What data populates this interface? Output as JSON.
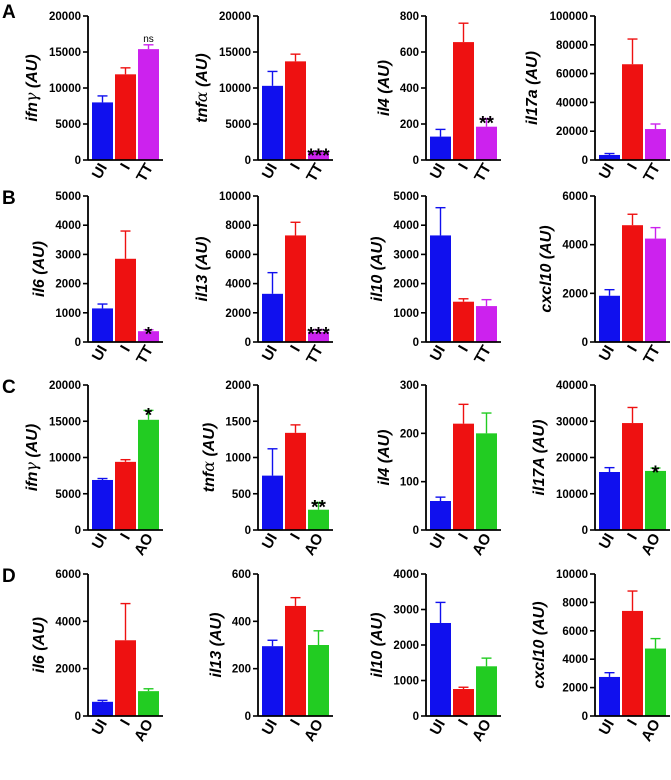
{
  "panel_labels": [
    "A",
    "B",
    "C",
    "D"
  ],
  "colors": {
    "UI": "#1010ee",
    "I": "#ee1111",
    "TT": "#cc22ee",
    "AO": "#22cc22"
  },
  "chart_data": [
    {
      "type": "bar",
      "panel": "A",
      "ylabel": "ifnγ (AU)",
      "ylabel_main": "ifn",
      "ylabel_greek": "γ",
      "ylabel_tail": " (AU)",
      "categories": [
        "UI",
        "I",
        "TT"
      ],
      "values": [
        8000,
        11900,
        15400
      ],
      "errors": [
        900,
        900,
        600
      ],
      "ylim": [
        0,
        20000
      ],
      "yticks": [
        "0",
        "5000",
        "10000",
        "15000",
        "20000"
      ],
      "significance": [
        "",
        "",
        "ns"
      ]
    },
    {
      "type": "bar",
      "panel": "A",
      "ylabel": "tnfα (AU)",
      "ylabel_main": "tnf",
      "ylabel_greek": "α",
      "ylabel_tail": " (AU)",
      "categories": [
        "UI",
        "I",
        "TT"
      ],
      "values": [
        10300,
        13700,
        1100
      ],
      "errors": [
        2000,
        1000,
        150
      ],
      "ylim": [
        0,
        20000
      ],
      "yticks": [
        "0",
        "5000",
        "10000",
        "15000",
        "20000"
      ],
      "significance": [
        "",
        "",
        "***"
      ]
    },
    {
      "type": "bar",
      "panel": "A",
      "ylabel": "il4 (AU)",
      "ylabel_main": "il4",
      "ylabel_greek": "",
      "ylabel_tail": " (AU)",
      "categories": [
        "UI",
        "I",
        "TT"
      ],
      "values": [
        130,
        655,
        185
      ],
      "errors": [
        40,
        105,
        45
      ],
      "ylim": [
        0,
        800
      ],
      "yticks": [
        "0",
        "200",
        "400",
        "600",
        "800"
      ],
      "significance": [
        "",
        "",
        "**"
      ]
    },
    {
      "type": "bar",
      "panel": "A",
      "ylabel": "il17a (AU)",
      "ylabel_main": "il17a",
      "ylabel_greek": "",
      "ylabel_tail": " (AU)",
      "categories": [
        "UI",
        "I",
        "TT"
      ],
      "values": [
        3500,
        66500,
        21500
      ],
      "errors": [
        1000,
        17500,
        3500
      ],
      "ylim": [
        0,
        100000
      ],
      "yticks": [
        "0",
        "20000",
        "40000",
        "60000",
        "80000",
        "100000"
      ],
      "significance": [
        "",
        "",
        ""
      ]
    },
    {
      "type": "bar",
      "panel": "B",
      "ylabel": "il6 (AU)",
      "ylabel_main": "il6",
      "ylabel_greek": "",
      "ylabel_tail": " (AU)",
      "categories": [
        "UI",
        "I",
        "TT"
      ],
      "values": [
        1150,
        2850,
        370
      ],
      "errors": [
        150,
        950,
        50
      ],
      "ylim": [
        0,
        5000
      ],
      "yticks": [
        "0",
        "1000",
        "2000",
        "3000",
        "4000",
        "5000"
      ],
      "significance": [
        "",
        "",
        "*"
      ]
    },
    {
      "type": "bar",
      "panel": "B",
      "ylabel": "il13 (AU)",
      "ylabel_main": "il13",
      "ylabel_greek": "",
      "ylabel_tail": " (AU)",
      "categories": [
        "UI",
        "I",
        "TT"
      ],
      "values": [
        3300,
        7300,
        700
      ],
      "errors": [
        1450,
        900,
        150
      ],
      "ylim": [
        0,
        10000
      ],
      "yticks": [
        "0",
        "2000",
        "4000",
        "6000",
        "8000",
        "10000"
      ],
      "significance": [
        "",
        "",
        "***"
      ]
    },
    {
      "type": "bar",
      "panel": "B",
      "ylabel": "il10 (AU)",
      "ylabel_main": "il10",
      "ylabel_greek": "",
      "ylabel_tail": " (AU)",
      "categories": [
        "UI",
        "I",
        "TT"
      ],
      "values": [
        3650,
        1380,
        1230
      ],
      "errors": [
        950,
        100,
        220
      ],
      "ylim": [
        0,
        5000
      ],
      "yticks": [
        "0",
        "1000",
        "2000",
        "3000",
        "4000",
        "5000"
      ],
      "significance": [
        "",
        "",
        ""
      ]
    },
    {
      "type": "bar",
      "panel": "B",
      "ylabel": "cxcl10 (AU)",
      "ylabel_main": "cxcl10",
      "ylabel_greek": "",
      "ylabel_tail": " (AU)",
      "categories": [
        "UI",
        "I",
        "TT"
      ],
      "values": [
        1900,
        4800,
        4250
      ],
      "errors": [
        250,
        450,
        450
      ],
      "ylim": [
        0,
        6000
      ],
      "yticks": [
        "0",
        "2000",
        "4000",
        "6000"
      ],
      "significance": [
        "",
        "",
        ""
      ]
    },
    {
      "type": "bar",
      "panel": "C",
      "ylabel": "ifnγ (AU)",
      "ylabel_main": "ifn",
      "ylabel_greek": "γ",
      "ylabel_tail": " (AU)",
      "categories": [
        "UI",
        "I",
        "AO"
      ],
      "values": [
        6900,
        9400,
        15200
      ],
      "errors": [
        200,
        300,
        1300
      ],
      "ylim": [
        0,
        20000
      ],
      "yticks": [
        "0",
        "5000",
        "10000",
        "15000",
        "20000"
      ],
      "significance": [
        "",
        "",
        "*"
      ]
    },
    {
      "type": "bar",
      "panel": "C",
      "ylabel": "tnfα (AU)",
      "ylabel_main": "tnf",
      "ylabel_greek": "α",
      "ylabel_tail": " (AU)",
      "categories": [
        "UI",
        "I",
        "AO"
      ],
      "values": [
        750,
        1340,
        280
      ],
      "errors": [
        370,
        110,
        100
      ],
      "ylim": [
        0,
        2000
      ],
      "yticks": [
        "0",
        "500",
        "1000",
        "1500",
        "2000"
      ],
      "significance": [
        "",
        "",
        "**"
      ]
    },
    {
      "type": "bar",
      "panel": "C",
      "ylabel": "il4 (AU)",
      "ylabel_main": "il4",
      "ylabel_greek": "",
      "ylabel_tail": " (AU)",
      "categories": [
        "UI",
        "I",
        "AO"
      ],
      "values": [
        60,
        220,
        200
      ],
      "errors": [
        8,
        40,
        42
      ],
      "ylim": [
        0,
        300
      ],
      "yticks": [
        "0",
        "100",
        "200",
        "300"
      ],
      "significance": [
        "",
        "",
        ""
      ]
    },
    {
      "type": "bar",
      "panel": "C",
      "ylabel": "il17A (AU)",
      "ylabel_main": "il17A",
      "ylabel_greek": "",
      "ylabel_tail": " (AU)",
      "categories": [
        "UI",
        "I",
        "AO"
      ],
      "values": [
        16000,
        29500,
        16300
      ],
      "errors": [
        1200,
        4300,
        800
      ],
      "ylim": [
        0,
        40000
      ],
      "yticks": [
        "0",
        "10000",
        "20000",
        "30000",
        "40000"
      ],
      "significance": [
        "",
        "",
        "*"
      ]
    },
    {
      "type": "bar",
      "panel": "D",
      "ylabel": "il6 (AU)",
      "ylabel_main": "il6",
      "ylabel_greek": "",
      "ylabel_tail": " (AU)",
      "categories": [
        "UI",
        "I",
        "AO"
      ],
      "values": [
        600,
        3200,
        1050
      ],
      "errors": [
        60,
        1550,
        100
      ],
      "ylim": [
        0,
        6000
      ],
      "yticks": [
        "0",
        "2000",
        "4000",
        "6000"
      ],
      "significance": [
        "",
        "",
        ""
      ]
    },
    {
      "type": "bar",
      "panel": "D",
      "ylabel": "il13 (AU)",
      "ylabel_main": "il13",
      "ylabel_greek": "",
      "ylabel_tail": " (AU)",
      "categories": [
        "UI",
        "I",
        "AO"
      ],
      "values": [
        295,
        465,
        300
      ],
      "errors": [
        25,
        35,
        60
      ],
      "ylim": [
        0,
        600
      ],
      "yticks": [
        "0",
        "200",
        "400",
        "600"
      ],
      "significance": [
        "",
        "",
        ""
      ]
    },
    {
      "type": "bar",
      "panel": "D",
      "ylabel": "il10 (AU)",
      "ylabel_main": "il10",
      "ylabel_greek": "",
      "ylabel_tail": " (AU)",
      "categories": [
        "UI",
        "I",
        "AO"
      ],
      "values": [
        2620,
        760,
        1400
      ],
      "errors": [
        580,
        50,
        230
      ],
      "ylim": [
        0,
        4000
      ],
      "yticks": [
        "0",
        "1000",
        "2000",
        "3000",
        "4000"
      ],
      "significance": [
        "",
        "",
        ""
      ]
    },
    {
      "type": "bar",
      "panel": "D",
      "ylabel": "cxcl10 (AU)",
      "ylabel_main": "cxcl10",
      "ylabel_greek": "",
      "ylabel_tail": " (AU)",
      "categories": [
        "UI",
        "I",
        "AO"
      ],
      "values": [
        2750,
        7400,
        4750
      ],
      "errors": [
        300,
        1400,
        700
      ],
      "ylim": [
        0,
        10000
      ],
      "yticks": [
        "0",
        "2000",
        "4000",
        "6000",
        "8000",
        "10000"
      ],
      "significance": [
        "",
        "",
        ""
      ]
    }
  ]
}
